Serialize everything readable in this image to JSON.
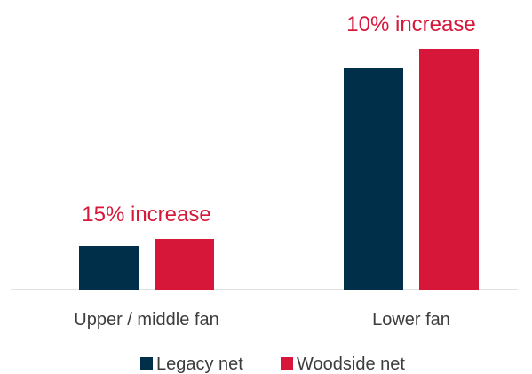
{
  "chart_data": {
    "type": "bar",
    "categories": [
      "Upper / middle fan",
      "Lower fan"
    ],
    "series": [
      {
        "name": "Legacy net",
        "values": [
          49,
          249
        ],
        "color": "#003049"
      },
      {
        "name": "Woodside net",
        "values": [
          57,
          271
        ],
        "color": "#d7173a"
      }
    ],
    "annotations": [
      "15% increase",
      "10% increase"
    ],
    "annotation_color": "#d7173a",
    "ylim": [
      0,
      300
    ],
    "grid": false,
    "legend": "bottom-center",
    "title": "",
    "xlabel": "",
    "ylabel": ""
  }
}
